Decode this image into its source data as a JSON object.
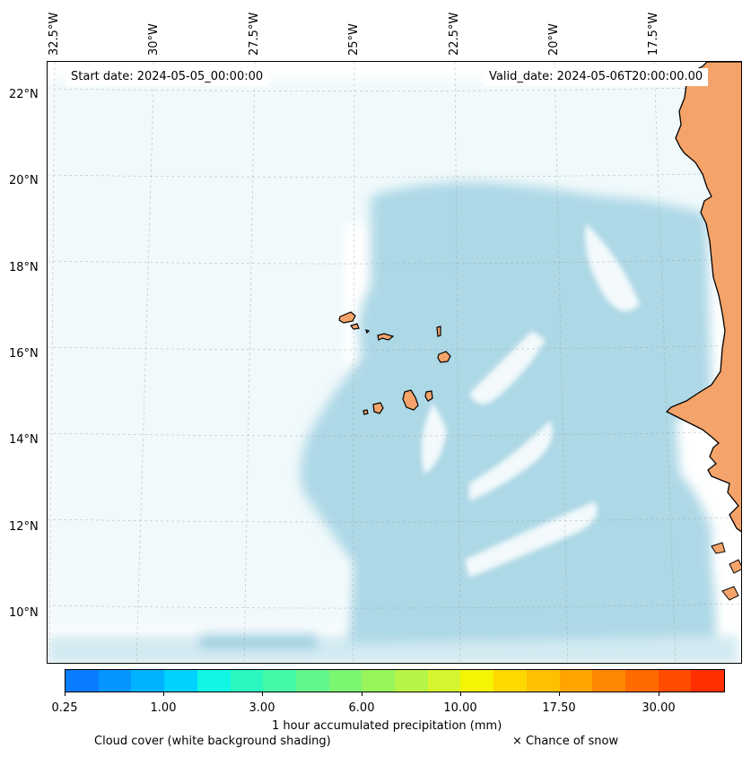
{
  "map": {
    "start_date": "Start date: 2024-05-05_00:00:00",
    "valid_date": "Valid_date: 2024-05-06T20:00:00.00",
    "lon_labels": [
      "32.5°W",
      "30°W",
      "27.5°W",
      "25°W",
      "22.5°W",
      "20°W",
      "17.5°W"
    ],
    "lat_labels": [
      "22°N",
      "20°N",
      "18°N",
      "16°N",
      "14°N",
      "12°N",
      "10°N"
    ],
    "land_color": "#f4a46a",
    "cloud_color": "#add8e6",
    "coast_color": "#000000",
    "islands": [
      "Santo Antão",
      "São Vicente",
      "Santa Luzia",
      "São Nicolau",
      "Sal",
      "Boa Vista",
      "Maio",
      "Santiago",
      "Fogo",
      "Brava"
    ]
  },
  "colorbar": {
    "colors": [
      "#0a7cff",
      "#0595ff",
      "#00b2ff",
      "#00d2ff",
      "#10f5e4",
      "#2bf8c0",
      "#44f9a8",
      "#62f58c",
      "#7cf571",
      "#98f55c",
      "#b6f548",
      "#d6f52e",
      "#f4f500",
      "#ffd800",
      "#ffc000",
      "#ffa400",
      "#ff8700",
      "#ff6a00",
      "#ff4c00",
      "#ff2f00"
    ],
    "tick_labels": [
      "0.25",
      "1.00",
      "3.00",
      "6.00",
      "10.00",
      "17.50",
      "30.00"
    ],
    "label": "1 hour accumulated precipitation (mm)"
  },
  "legend": {
    "cloud_cover": "Cloud cover (white background shading)",
    "snow": "× Chance of snow"
  }
}
